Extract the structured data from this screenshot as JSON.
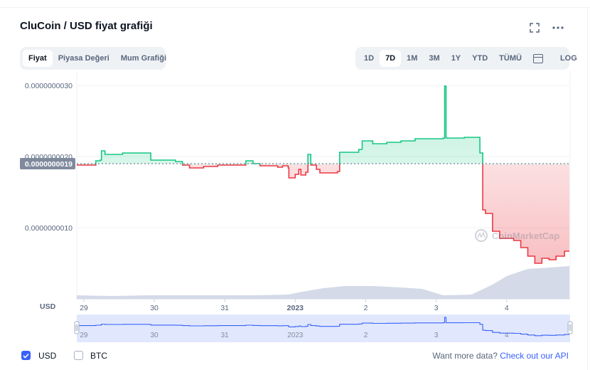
{
  "title": "CluCoin / USD fiyat grafiği",
  "icons": {
    "fullscreen": "expand-icon",
    "more": "more-dots-icon",
    "calendar": "calendar-icon",
    "check": "check-icon"
  },
  "view_tabs": [
    "Fiyat",
    "Piyasa Değeri",
    "Mum Grafiği"
  ],
  "active_view": "Fiyat",
  "range_tabs": [
    "1D",
    "7D",
    "1M",
    "3M",
    "1Y",
    "YTD",
    "TÜMÜ"
  ],
  "active_range": "7D",
  "log_label": "LOG",
  "currency_label": "USD",
  "current_price_label": "0.0000000019",
  "watermark": "CoinMarketCap",
  "toggles": [
    {
      "label": "USD",
      "checked": true
    },
    {
      "label": "BTC",
      "checked": false
    }
  ],
  "footer": {
    "text": "Want more data?",
    "link": "Check out our API"
  },
  "colors": {
    "up": "#16c784",
    "down": "#ea3943",
    "accent": "#3861fb",
    "volume": "#cfd6e4",
    "navigator": "#dde4fd"
  },
  "chart_data": {
    "type": "line",
    "ylim": [
      0,
      3e-09
    ],
    "y_ticks": [
      "0.0000000030",
      "0.0000000020",
      "0.0000000010"
    ],
    "x_ticks": [
      {
        "label": "29",
        "t": 0.1
      },
      {
        "label": "30",
        "t": 1.1
      },
      {
        "label": "31",
        "t": 2.1
      },
      {
        "label": "2023",
        "t": 3.1
      },
      {
        "label": "2",
        "t": 4.1
      },
      {
        "label": "3",
        "t": 5.1
      },
      {
        "label": "4",
        "t": 6.1
      }
    ],
    "baseline": 1.9e-09,
    "series": [
      {
        "values": [
          [
            0.0,
            1.88
          ],
          [
            0.18,
            1.88
          ],
          [
            0.27,
            1.94
          ],
          [
            0.33,
            1.95
          ],
          [
            0.35,
            2.08
          ],
          [
            0.4,
            2.03
          ],
          [
            0.65,
            2.05
          ],
          [
            1.0,
            2.05
          ],
          [
            1.05,
            1.95
          ],
          [
            1.4,
            1.93
          ],
          [
            1.5,
            1.88
          ],
          [
            1.6,
            1.84
          ],
          [
            1.8,
            1.86
          ],
          [
            2.0,
            1.88
          ],
          [
            2.4,
            1.94
          ],
          [
            2.5,
            1.9
          ],
          [
            2.6,
            1.87
          ],
          [
            2.85,
            1.85
          ],
          [
            2.92,
            1.87
          ],
          [
            3.0,
            1.84
          ],
          [
            3.01,
            1.7
          ],
          [
            3.1,
            1.75
          ],
          [
            3.15,
            1.82
          ],
          [
            3.18,
            1.74
          ],
          [
            3.25,
            1.78
          ],
          [
            3.28,
            2.03
          ],
          [
            3.32,
            1.88
          ],
          [
            3.4,
            1.82
          ],
          [
            3.45,
            1.77
          ],
          [
            3.7,
            1.79
          ],
          [
            3.73,
            2.06
          ],
          [
            4.0,
            2.1
          ],
          [
            4.05,
            2.22
          ],
          [
            4.2,
            2.18
          ],
          [
            4.4,
            2.2
          ],
          [
            4.6,
            2.22
          ],
          [
            4.8,
            2.25
          ],
          [
            5.0,
            2.25
          ],
          [
            5.2,
            2.26
          ],
          [
            5.22,
            2.99
          ],
          [
            5.24,
            2.26
          ],
          [
            5.5,
            2.27
          ],
          [
            5.68,
            2.27
          ],
          [
            5.72,
            2.05
          ],
          [
            5.76,
            1.25
          ],
          [
            5.8,
            1.2
          ],
          [
            5.9,
            0.95
          ],
          [
            6.0,
            0.85
          ],
          [
            6.2,
            0.82
          ],
          [
            6.3,
            0.72
          ],
          [
            6.4,
            0.6
          ],
          [
            6.5,
            0.5
          ],
          [
            6.6,
            0.57
          ],
          [
            6.7,
            0.55
          ],
          [
            6.8,
            0.6
          ],
          [
            6.92,
            0.67
          ],
          [
            6.99,
            0.67
          ]
        ]
      }
    ],
    "volume": [
      [
        0,
        0.05
      ],
      [
        0.5,
        0.04
      ],
      [
        1.0,
        0.05
      ],
      [
        1.5,
        0.05
      ],
      [
        2.0,
        0.05
      ],
      [
        2.5,
        0.05
      ],
      [
        3.0,
        0.06
      ],
      [
        3.2,
        0.1
      ],
      [
        3.5,
        0.15
      ],
      [
        3.8,
        0.18
      ],
      [
        4.2,
        0.18
      ],
      [
        4.6,
        0.16
      ],
      [
        4.9,
        0.14
      ],
      [
        5.2,
        0.05
      ],
      [
        5.6,
        0.06
      ],
      [
        5.9,
        0.2
      ],
      [
        6.1,
        0.32
      ],
      [
        6.4,
        0.42
      ],
      [
        6.7,
        0.44
      ],
      [
        6.99,
        0.46
      ]
    ]
  }
}
